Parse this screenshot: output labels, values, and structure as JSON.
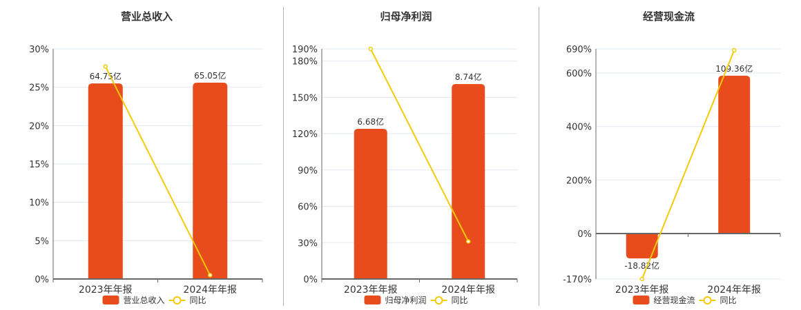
{
  "colors": {
    "bar": "#e84c1c",
    "line": "#f2cb05",
    "grid": "#e3e8ef",
    "axis": "#666666"
  },
  "legend_yoy": "同比",
  "chart_data": [
    {
      "type": "bar+line",
      "title": "营业总收入",
      "categories": [
        "2023年年报",
        "2024年年报"
      ],
      "ylim": [
        0,
        30
      ],
      "yticks": [
        0,
        5,
        10,
        15,
        20,
        25,
        30
      ],
      "series": [
        {
          "name": "营业总收入",
          "type": "bar",
          "bar_heights_pct": [
            25.5,
            25.6
          ],
          "labels": [
            "64.75亿",
            "65.05亿"
          ],
          "values_yi": [
            64.75,
            65.05
          ]
        },
        {
          "name": "同比",
          "type": "line",
          "values": [
            27.7,
            0.5
          ]
        }
      ]
    },
    {
      "type": "bar+line",
      "title": "归母净利润",
      "categories": [
        "2023年年报",
        "2024年年报"
      ],
      "ylim": [
        0,
        190
      ],
      "yticks": [
        0,
        30,
        60,
        90,
        120,
        150,
        180,
        190
      ],
      "series": [
        {
          "name": "归母净利润",
          "type": "bar",
          "bar_heights_pct": [
            124,
            161
          ],
          "labels": [
            "6.68亿",
            "8.74亿"
          ],
          "values_yi": [
            6.68,
            8.74
          ]
        },
        {
          "name": "同比",
          "type": "line",
          "values": [
            190,
            31
          ]
        }
      ]
    },
    {
      "type": "bar+line",
      "title": "经营现金流",
      "categories": [
        "2023年年报",
        "2024年年报"
      ],
      "ylim": [
        -170,
        690
      ],
      "yticks": [
        -170,
        0,
        200,
        400,
        600,
        690
      ],
      "series": [
        {
          "name": "经营现金流",
          "type": "bar",
          "bar_heights_pct": [
            -93,
            590
          ],
          "labels": [
            "-18.82亿",
            "109.36亿"
          ],
          "values_yi": [
            -18.82,
            109.36
          ]
        },
        {
          "name": "同比",
          "type": "line",
          "values": [
            -170,
            685
          ]
        }
      ]
    }
  ]
}
